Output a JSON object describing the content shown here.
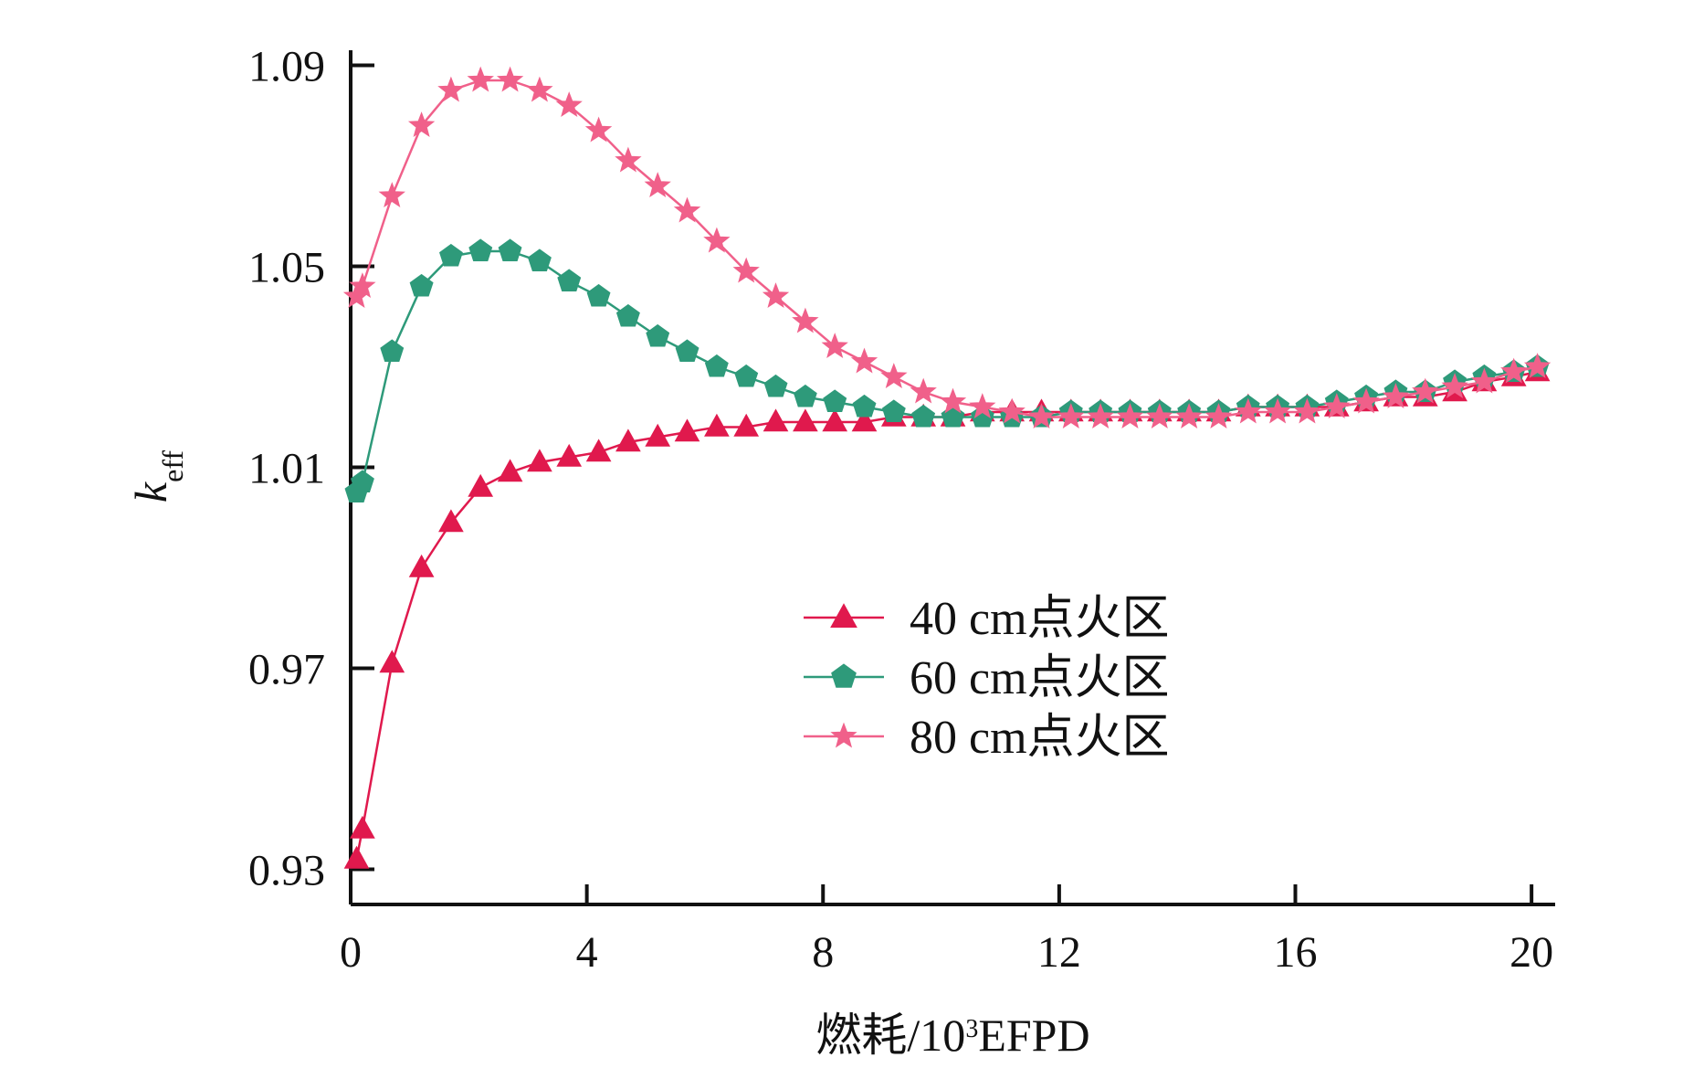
{
  "chart_data": {
    "type": "line",
    "title": "",
    "xlabel": "燃耗/10³EFPD",
    "xlabel_parts": {
      "prefix": "燃耗/10",
      "sup": "3",
      "suffix": "EFPD"
    },
    "ylabel": "keff",
    "ylabel_parts": {
      "main": "k",
      "sub": "eff"
    },
    "xlim": [
      0,
      20.4
    ],
    "ylim": [
      0.923,
      1.093
    ],
    "x_ticks": [
      0,
      4,
      8,
      12,
      16,
      20
    ],
    "x_tick_labels": [
      "0",
      "4",
      "8",
      "12",
      "16",
      "20"
    ],
    "y_ticks": [
      0.93,
      0.97,
      1.01,
      1.05,
      1.09
    ],
    "y_tick_labels": [
      "0.93",
      "0.97",
      "1.01",
      "1.05",
      "1.09"
    ],
    "grid": false,
    "legend_position": "center-right",
    "x": [
      0.1,
      0.2,
      0.7,
      1.2,
      1.7,
      2.2,
      2.7,
      3.2,
      3.7,
      4.2,
      4.7,
      5.2,
      5.7,
      6.2,
      6.7,
      7.2,
      7.7,
      8.2,
      8.7,
      9.2,
      9.7,
      10.2,
      10.7,
      11.2,
      11.7,
      12.2,
      12.7,
      13.2,
      13.7,
      14.2,
      14.7,
      15.2,
      15.7,
      16.2,
      16.7,
      17.2,
      17.7,
      18.2,
      18.7,
      19.2,
      19.7,
      20.1
    ],
    "series": [
      {
        "name": "40 cm点火区",
        "marker": "triangle",
        "color": "#e0194d",
        "values": [
          0.932,
          0.938,
          0.971,
          0.99,
          0.999,
          1.006,
          1.009,
          1.011,
          1.012,
          1.013,
          1.015,
          1.016,
          1.017,
          1.018,
          1.018,
          1.019,
          1.019,
          1.019,
          1.019,
          1.02,
          1.02,
          1.02,
          1.021,
          1.021,
          1.021,
          1.021,
          1.021,
          1.021,
          1.021,
          1.021,
          1.021,
          1.022,
          1.022,
          1.022,
          1.022,
          1.023,
          1.024,
          1.024,
          1.025,
          1.027,
          1.028,
          1.029
        ]
      },
      {
        "name": "60 cm点火区",
        "marker": "pentagon",
        "color": "#2e9a7a",
        "values": [
          1.005,
          1.007,
          1.033,
          1.046,
          1.052,
          1.053,
          1.053,
          1.051,
          1.047,
          1.044,
          1.04,
          1.036,
          1.033,
          1.03,
          1.028,
          1.026,
          1.024,
          1.023,
          1.022,
          1.021,
          1.02,
          1.02,
          1.02,
          1.02,
          1.02,
          1.021,
          1.021,
          1.021,
          1.021,
          1.021,
          1.021,
          1.022,
          1.022,
          1.022,
          1.023,
          1.024,
          1.025,
          1.025,
          1.027,
          1.028,
          1.029,
          1.03
        ]
      },
      {
        "name": "80 cm点火区",
        "marker": "star",
        "color": "#f0608a",
        "values": [
          1.044,
          1.046,
          1.064,
          1.078,
          1.085,
          1.087,
          1.087,
          1.085,
          1.082,
          1.077,
          1.071,
          1.066,
          1.061,
          1.055,
          1.049,
          1.044,
          1.039,
          1.034,
          1.031,
          1.028,
          1.025,
          1.023,
          1.022,
          1.021,
          1.02,
          1.02,
          1.02,
          1.02,
          1.02,
          1.02,
          1.02,
          1.021,
          1.021,
          1.021,
          1.022,
          1.023,
          1.024,
          1.025,
          1.026,
          1.027,
          1.029,
          1.03
        ]
      }
    ]
  }
}
